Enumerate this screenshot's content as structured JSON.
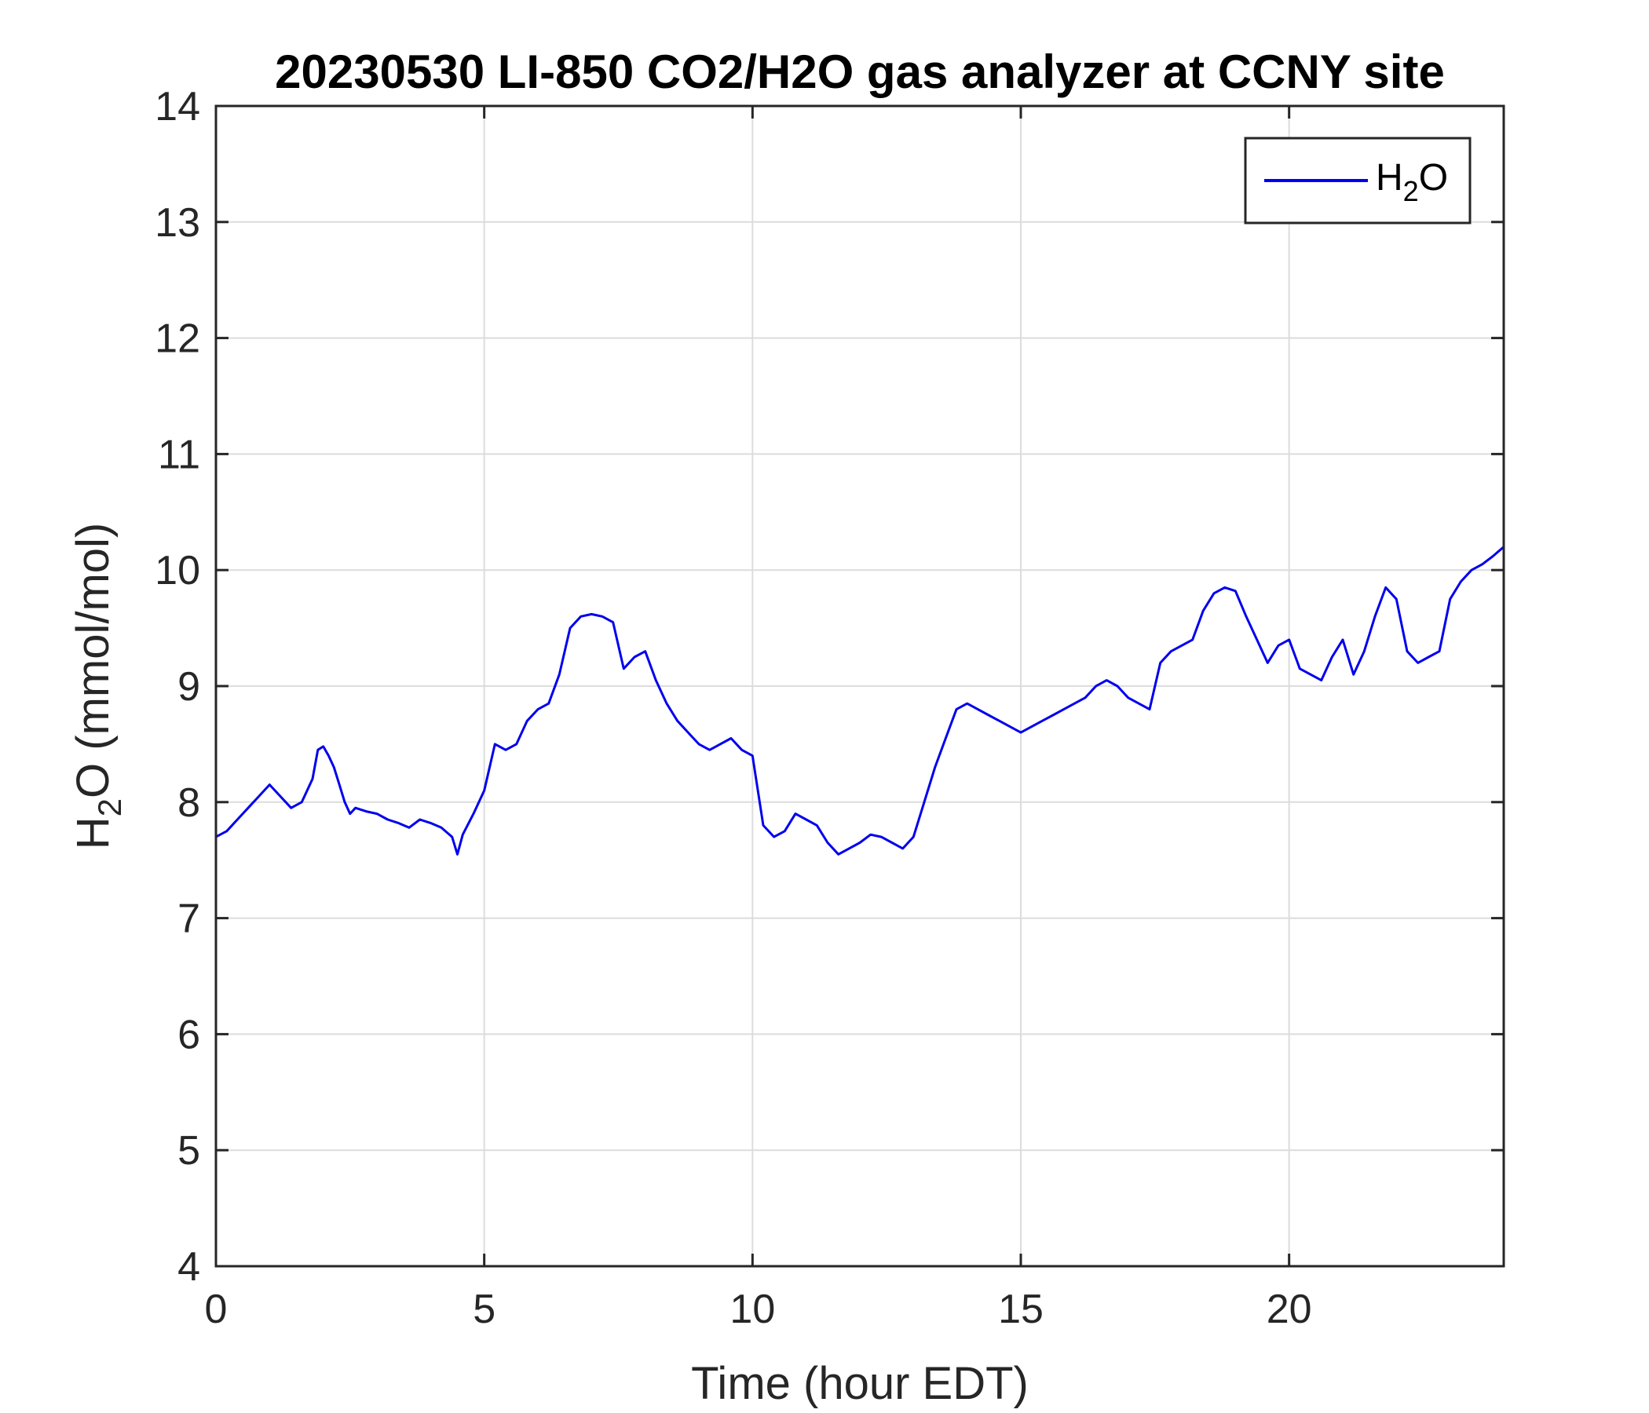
{
  "chart_data": {
    "type": "line",
    "title": "20230530 LI-850 CO2/H2O gas analyzer at CCNY site",
    "xlabel": "Time (hour EDT)",
    "ylabel": {
      "main": "H",
      "sub": "2",
      "rest": "O (mmol/mol)"
    },
    "xlim": [
      0,
      24
    ],
    "ylim": [
      4,
      14
    ],
    "xticks": [
      0,
      5,
      10,
      15,
      20
    ],
    "yticks": [
      4,
      5,
      6,
      7,
      8,
      9,
      10,
      11,
      12,
      13,
      14
    ],
    "grid": true,
    "legend_position": "top-right",
    "colors": {
      "series": "#0000ee",
      "grid": "#dcdcdc",
      "axis": "#262626"
    },
    "series": [
      {
        "name": {
          "main": "H",
          "sub": "2",
          "rest": "O"
        },
        "x": [
          0,
          0.2,
          0.4,
          0.6,
          0.8,
          1.0,
          1.2,
          1.4,
          1.6,
          1.8,
          1.9,
          2.0,
          2.1,
          2.2,
          2.3,
          2.4,
          2.5,
          2.6,
          2.8,
          3.0,
          3.2,
          3.4,
          3.6,
          3.8,
          4.0,
          4.2,
          4.4,
          4.5,
          4.6,
          4.8,
          5.0,
          5.2,
          5.4,
          5.6,
          5.8,
          6.0,
          6.2,
          6.4,
          6.6,
          6.8,
          7.0,
          7.2,
          7.4,
          7.6,
          7.8,
          8.0,
          8.2,
          8.4,
          8.6,
          8.8,
          9.0,
          9.2,
          9.4,
          9.6,
          9.8,
          10.0,
          10.2,
          10.4,
          10.6,
          10.8,
          11.0,
          11.2,
          11.4,
          11.6,
          11.8,
          12.0,
          12.2,
          12.4,
          12.6,
          12.8,
          13.0,
          13.2,
          13.4,
          13.6,
          13.8,
          14.0,
          14.2,
          14.4,
          14.6,
          14.8,
          15.0,
          15.2,
          15.4,
          15.6,
          15.8,
          16.0,
          16.2,
          16.4,
          16.6,
          16.8,
          17.0,
          17.2,
          17.4,
          17.6,
          17.8,
          18.0,
          18.2,
          18.4,
          18.6,
          18.8,
          19.0,
          19.2,
          19.4,
          19.6,
          19.8,
          20.0,
          20.2,
          20.4,
          20.6,
          20.8,
          21.0,
          21.2,
          21.4,
          21.6,
          21.8,
          22.0,
          22.2,
          22.4,
          22.6,
          22.8,
          23.0,
          23.2,
          23.4,
          23.6,
          23.8,
          24.0
        ],
        "values": [
          7.7,
          7.75,
          7.85,
          7.95,
          8.05,
          8.15,
          8.05,
          7.95,
          8.0,
          8.2,
          8.45,
          8.48,
          8.4,
          8.3,
          8.15,
          8.0,
          7.9,
          7.95,
          7.92,
          7.9,
          7.85,
          7.82,
          7.78,
          7.85,
          7.82,
          7.78,
          7.7,
          7.55,
          7.72,
          7.9,
          8.1,
          8.5,
          8.45,
          8.5,
          8.7,
          8.8,
          8.85,
          9.1,
          9.5,
          9.6,
          9.62,
          9.6,
          9.55,
          9.15,
          9.25,
          9.3,
          9.05,
          8.85,
          8.7,
          8.6,
          8.5,
          8.45,
          8.5,
          8.55,
          8.45,
          8.4,
          7.8,
          7.7,
          7.75,
          7.9,
          7.85,
          7.8,
          7.65,
          7.55,
          7.6,
          7.65,
          7.72,
          7.7,
          7.65,
          7.6,
          7.7,
          8.0,
          8.3,
          8.55,
          8.8,
          8.85,
          8.8,
          8.75,
          8.7,
          8.65,
          8.6,
          8.65,
          8.7,
          8.75,
          8.8,
          8.85,
          8.9,
          9.0,
          9.05,
          9.0,
          8.9,
          8.85,
          8.8,
          9.2,
          9.3,
          9.35,
          9.4,
          9.65,
          9.8,
          9.85,
          9.82,
          9.6,
          9.4,
          9.2,
          9.35,
          9.4,
          9.15,
          9.1,
          9.05,
          9.25,
          9.4,
          9.1,
          9.3,
          9.6,
          9.85,
          9.75,
          9.3,
          9.2,
          9.25,
          9.3,
          9.75,
          9.9,
          10.0,
          10.05,
          10.12,
          10.2
        ]
      }
    ]
  }
}
